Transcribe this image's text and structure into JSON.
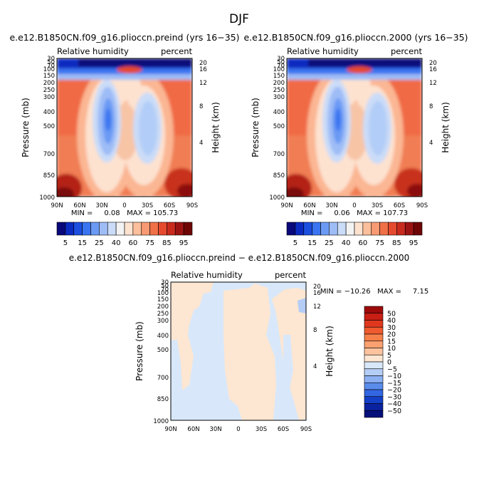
{
  "figure": {
    "title": "DJF"
  },
  "chart_data": [
    {
      "type": "heatmap",
      "title": "e.e12.B1850CN.f09_g16.pliocc​n.preind (yrs 16−35)",
      "variable": "Relative humidity",
      "units": "percent",
      "ylabel": "Pressure (mb)",
      "y2label": "Height (km)",
      "x_ticks": [
        "90N",
        "60N",
        "30N",
        "0",
        "30S",
        "60S",
        "90S"
      ],
      "y_ticks": [
        "30",
        "50",
        "70",
        "100",
        "150",
        "200",
        "250",
        "300",
        "400",
        "500",
        "700",
        "850",
        "1000"
      ],
      "y2_ticks": [
        "20",
        "16",
        "12",
        "8",
        "4"
      ],
      "min": "0.08",
      "max": "105.73",
      "stats_text": "MIN =     0.08   MAX = 105.73"
    },
    {
      "type": "heatmap",
      "title": "e.e12.B1850CN.f09_g16.pliocc​n.2000 (yrs 16−35)",
      "variable": "Relative humidity",
      "units": "percent",
      "ylabel": "Pressure (mb)",
      "y2label": "Height (km)",
      "x_ticks": [
        "90N",
        "60N",
        "30N",
        "0",
        "30S",
        "60S",
        "90S"
      ],
      "y_ticks": [
        "30",
        "50",
        "70",
        "100",
        "150",
        "200",
        "250",
        "300",
        "400",
        "500",
        "700",
        "850",
        "1000"
      ],
      "y2_ticks": [
        "20",
        "16",
        "12",
        "8",
        "4"
      ],
      "min": "0.06",
      "max": "107.73",
      "stats_text": "MIN =     0.06   MAX = 107.73"
    },
    {
      "type": "heatmap",
      "title": "e.e12.B1850CN.f09_g16.pliocc​n.preind − e.e12.B1850CN.f09_g16.pliocc​n.2000",
      "variable": "Relative humidity",
      "units": "percent",
      "ylabel": "Pressure (mb)",
      "y2label": "Height (km)",
      "x_ticks": [
        "90N",
        "60N",
        "30N",
        "0",
        "30S",
        "60S",
        "90S"
      ],
      "y_ticks": [
        "30",
        "50",
        "70",
        "100",
        "150",
        "200",
        "250",
        "300",
        "400",
        "500",
        "700",
        "850",
        "1000"
      ],
      "y2_ticks": [
        "20",
        "16",
        "12",
        "8",
        "4"
      ],
      "min": "−10.26",
      "max": "7.15",
      "stats_text": "MIN = −10.26   MAX =     7.15"
    }
  ],
  "colorbar_main": {
    "labels": [
      "5",
      "15",
      "25",
      "40",
      "60",
      "75",
      "85",
      "95"
    ],
    "colors": [
      "#08087a",
      "#0a2ac0",
      "#1c4fe0",
      "#3a74f0",
      "#6a9af4",
      "#9ebcf6",
      "#cadcf8",
      "#f3f3f3",
      "#fde2d0",
      "#fcbf9c",
      "#f89a73",
      "#f07048",
      "#e64a2e",
      "#c82b1e",
      "#9c1412",
      "#6e0606"
    ]
  },
  "colorbar_diff": {
    "labels": [
      "50",
      "40",
      "30",
      "20",
      "15",
      "10",
      "5",
      "0",
      "−5",
      "−10",
      "−15",
      "−20",
      "−30",
      "−40",
      "−50"
    ],
    "colors": [
      "#9c0a0a",
      "#c81e14",
      "#e0381e",
      "#f05a2e",
      "#f7804a",
      "#fba070",
      "#fdc39e",
      "#fde6d2",
      "#d8e8fa",
      "#b4cdf6",
      "#8cb0f2",
      "#5a8cec",
      "#3366e2",
      "#1440c8",
      "#0a22a0",
      "#06107a"
    ]
  }
}
